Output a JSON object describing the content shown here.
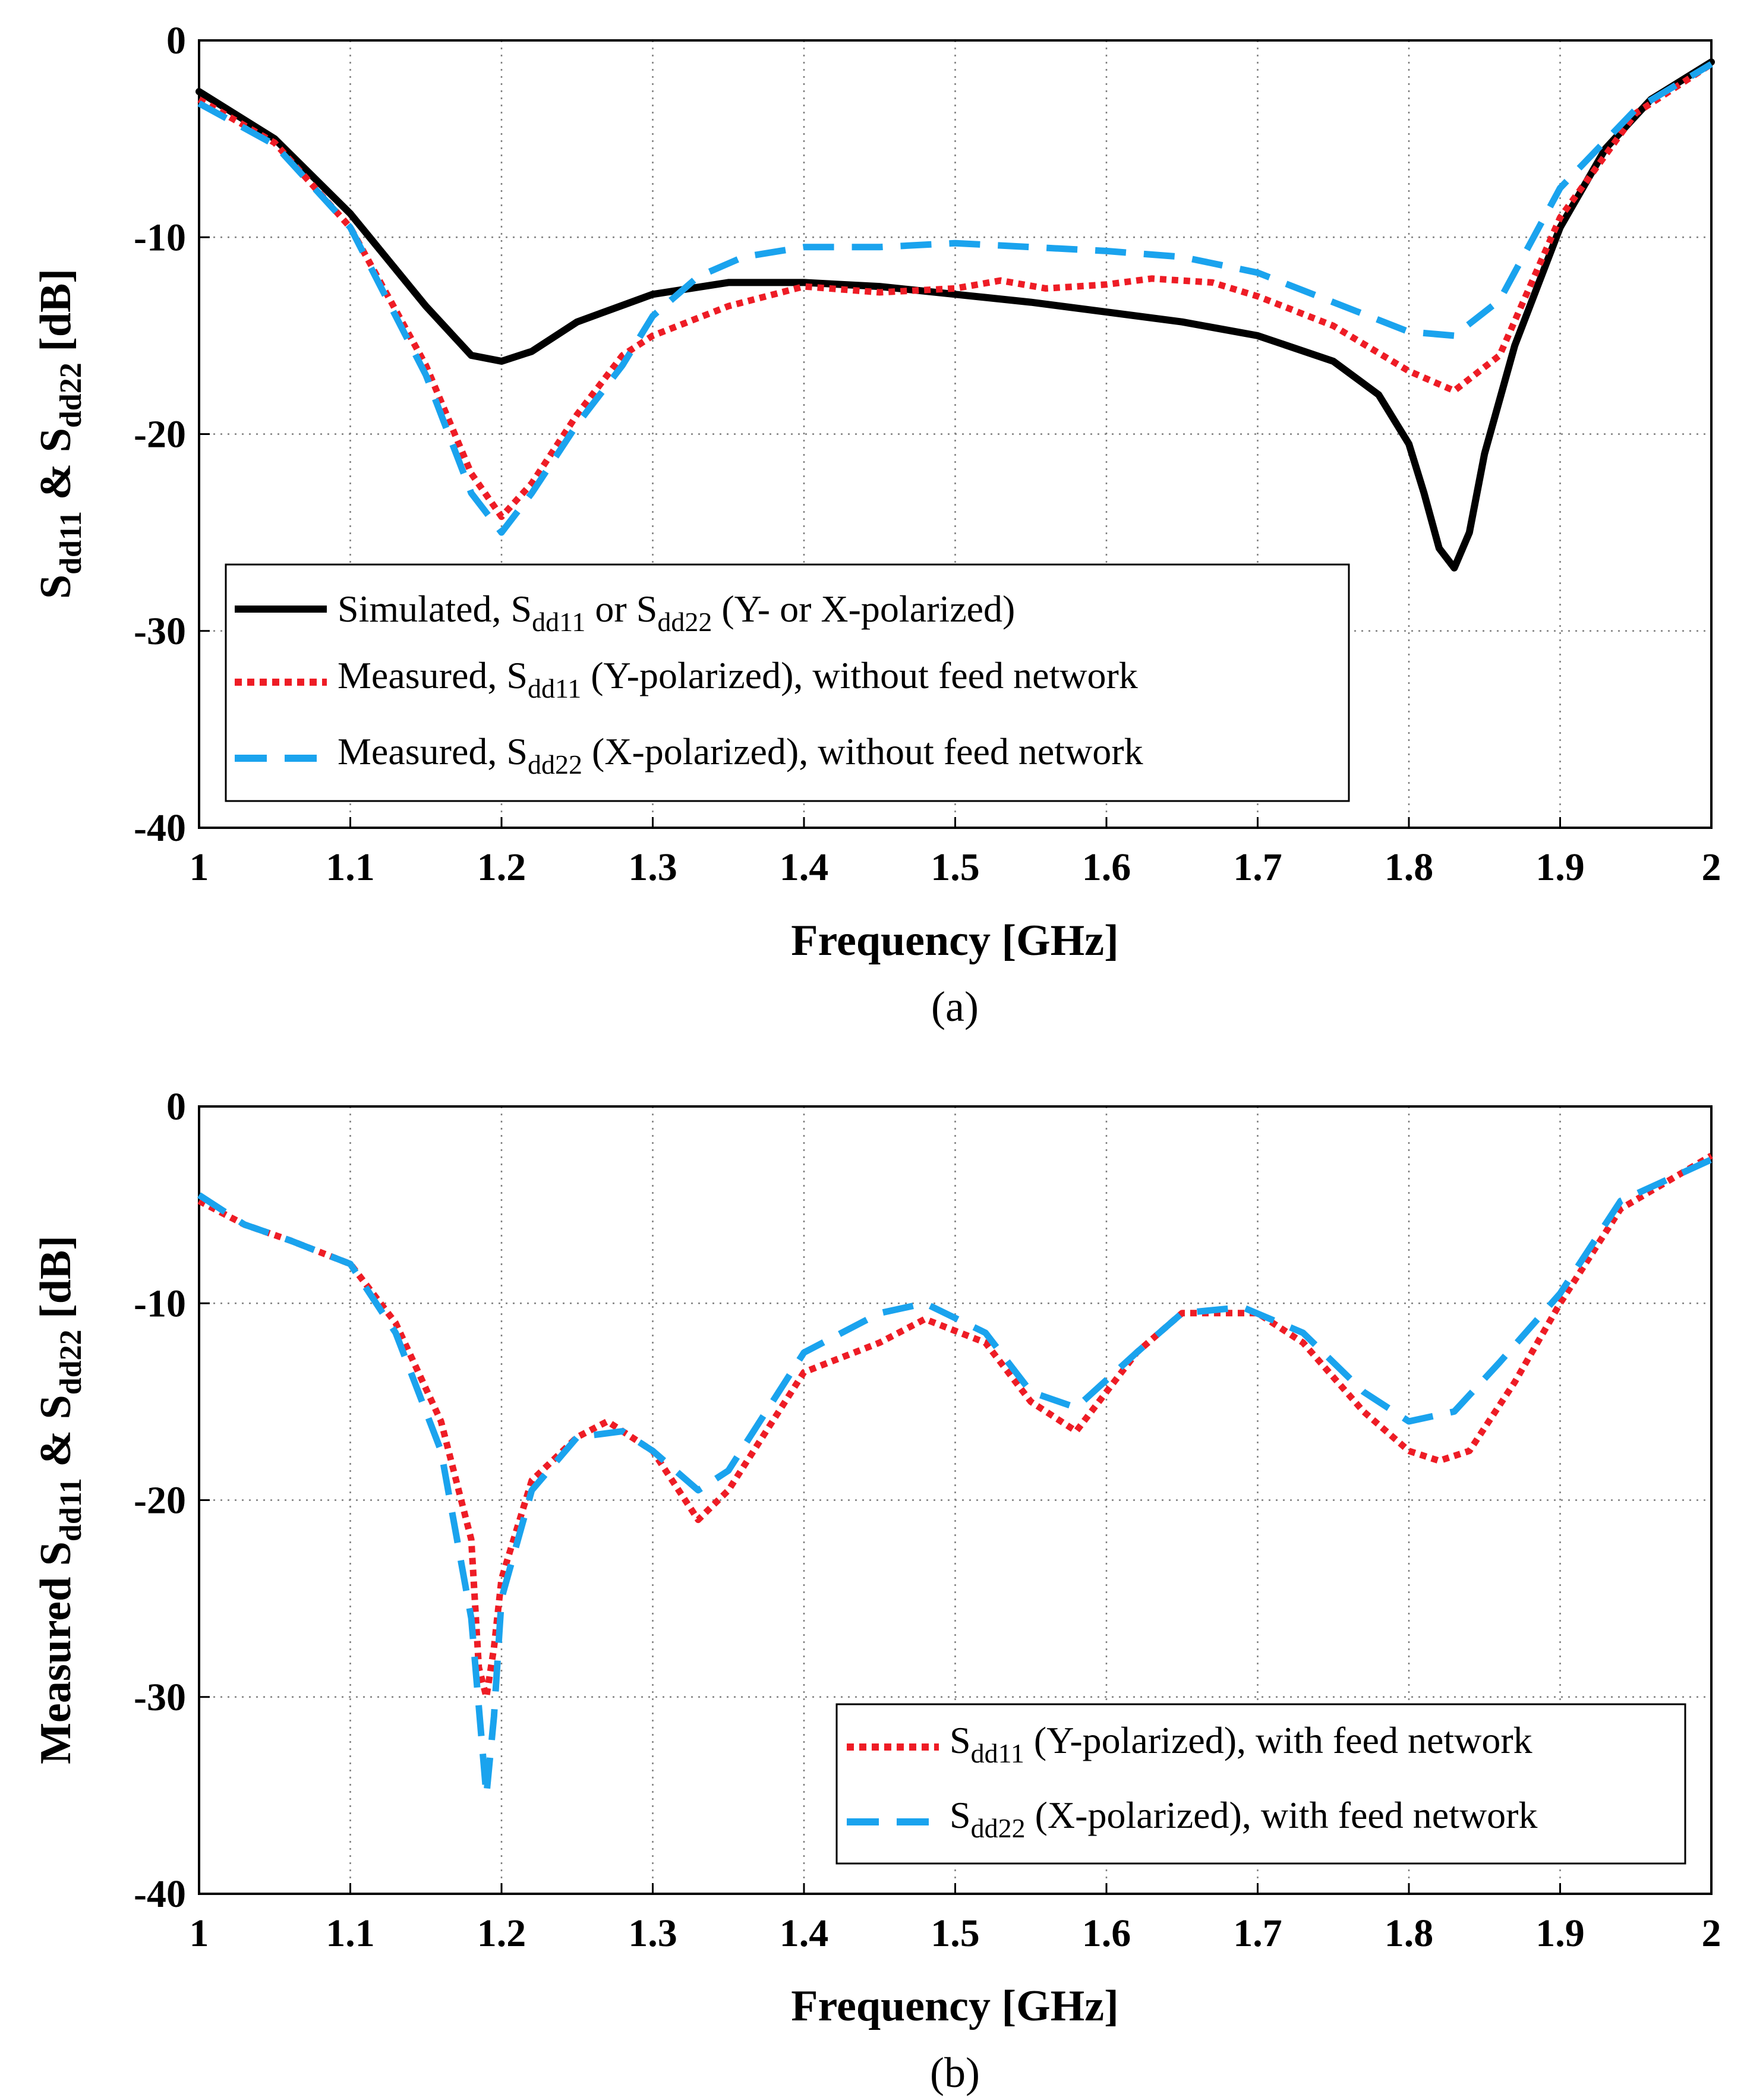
{
  "colors": {
    "simulated": "#000000",
    "measured_y": "#ee1c25",
    "measured_x": "#1aa3ee",
    "grid": "#7f7f7f"
  },
  "chart_data": [
    {
      "type": "line",
      "caption": "(a)",
      "xlabel": "Frequency [GHz]",
      "ylabel": {
        "part1": "S",
        "sub1": "dd11",
        "part2": " & S",
        "sub2": "dd22",
        "part3": " [dB]"
      },
      "xlim": [
        1,
        2
      ],
      "ylim": [
        -40,
        0
      ],
      "xticks": [
        "1",
        "1.1",
        "1.2",
        "1.3",
        "1.4",
        "1.5",
        "1.6",
        "1.7",
        "1.8",
        "1.9",
        "2"
      ],
      "yticks": [
        "0",
        "-10",
        "-20",
        "-30",
        "-40"
      ],
      "grid": true,
      "legend_position": "bottom-left",
      "series": [
        {
          "name": "Simulated, S dd11 or S dd22 (Y- or X-polarized)",
          "legend": {
            "pre": "Simulated,  S",
            "sub": "dd11",
            "mid": " or S",
            "sub2": "dd22",
            "post": " (Y- or X-polarized)"
          },
          "style": "solid",
          "x": [
            1.0,
            1.05,
            1.1,
            1.15,
            1.18,
            1.2,
            1.22,
            1.25,
            1.3,
            1.35,
            1.4,
            1.45,
            1.5,
            1.55,
            1.6,
            1.65,
            1.7,
            1.75,
            1.78,
            1.8,
            1.81,
            1.82,
            1.83,
            1.84,
            1.85,
            1.87,
            1.9,
            1.93,
            1.96,
            2.0
          ],
          "y": [
            -2.6,
            -5.0,
            -8.8,
            -13.5,
            -16.0,
            -16.3,
            -15.8,
            -14.3,
            -12.9,
            -12.3,
            -12.3,
            -12.5,
            -12.9,
            -13.3,
            -13.8,
            -14.3,
            -15.0,
            -16.3,
            -18.0,
            -20.5,
            -23.0,
            -25.8,
            -26.8,
            -25.0,
            -21.0,
            -15.5,
            -9.5,
            -5.5,
            -3.0,
            -1.1
          ]
        },
        {
          "name": "Measured, S dd11 (Y-polarized), without feed network",
          "legend": {
            "pre": "Measured,  S",
            "sub": "dd11",
            "mid": " (Y-polarized), without feed network",
            "sub2": "",
            "post": ""
          },
          "style": "dotted",
          "x": [
            1.0,
            1.05,
            1.1,
            1.15,
            1.18,
            1.2,
            1.22,
            1.25,
            1.28,
            1.3,
            1.35,
            1.4,
            1.45,
            1.5,
            1.53,
            1.56,
            1.6,
            1.63,
            1.67,
            1.7,
            1.75,
            1.8,
            1.83,
            1.86,
            1.9,
            1.95,
            2.0
          ],
          "y": [
            -3.0,
            -5.2,
            -9.5,
            -16.5,
            -22.0,
            -24.2,
            -22.5,
            -19.0,
            -16.0,
            -15.0,
            -13.5,
            -12.5,
            -12.8,
            -12.6,
            -12.2,
            -12.6,
            -12.4,
            -12.1,
            -12.3,
            -13.0,
            -14.5,
            -16.8,
            -17.8,
            -16.0,
            -9.0,
            -3.7,
            -1.2
          ]
        },
        {
          "name": "Measured, S dd22 (X-polarized), without feed network",
          "legend": {
            "pre": "Measured,  S",
            "sub": "dd22",
            "mid": " (X-polarized), without feed network",
            "sub2": "",
            "post": ""
          },
          "style": "dashed",
          "x": [
            1.0,
            1.05,
            1.1,
            1.15,
            1.18,
            1.2,
            1.22,
            1.25,
            1.28,
            1.3,
            1.33,
            1.36,
            1.4,
            1.45,
            1.5,
            1.55,
            1.6,
            1.65,
            1.7,
            1.75,
            1.8,
            1.83,
            1.86,
            1.9,
            1.95,
            2.0
          ],
          "y": [
            -3.2,
            -5.3,
            -9.5,
            -17.0,
            -23.0,
            -25.0,
            -23.0,
            -19.5,
            -16.5,
            -14.0,
            -12.0,
            -11.0,
            -10.5,
            -10.5,
            -10.3,
            -10.5,
            -10.7,
            -11.0,
            -11.8,
            -13.3,
            -14.8,
            -15.0,
            -13.2,
            -7.5,
            -3.5,
            -1.2
          ]
        }
      ]
    },
    {
      "type": "line",
      "caption": "(b)",
      "xlabel": "Frequency [GHz]",
      "ylabel": {
        "part1": "Measured S",
        "sub1": "dd11",
        "part2": " & S",
        "sub2": "dd22",
        "part3": " [dB]"
      },
      "xlim": [
        1,
        2
      ],
      "ylim": [
        -40,
        0
      ],
      "xticks": [
        "1",
        "1.1",
        "1.2",
        "1.3",
        "1.4",
        "1.5",
        "1.6",
        "1.7",
        "1.8",
        "1.9",
        "2"
      ],
      "yticks": [
        "0",
        "-10",
        "-20",
        "-30",
        "-40"
      ],
      "grid": true,
      "legend_position": "bottom-right",
      "series": [
        {
          "name": "S dd11 (Y-polarized), with feed network",
          "legend": {
            "pre": "S",
            "sub": "dd11",
            "mid": " (Y-polarized), with feed network",
            "sub2": "",
            "post": ""
          },
          "style": "dotted",
          "x": [
            1.0,
            1.03,
            1.06,
            1.1,
            1.13,
            1.16,
            1.18,
            1.185,
            1.19,
            1.195,
            1.2,
            1.22,
            1.25,
            1.27,
            1.3,
            1.33,
            1.35,
            1.4,
            1.45,
            1.48,
            1.52,
            1.55,
            1.58,
            1.62,
            1.65,
            1.7,
            1.73,
            1.77,
            1.8,
            1.82,
            1.84,
            1.87,
            1.9,
            1.94,
            2.0
          ],
          "y": [
            -4.8,
            -6.0,
            -6.8,
            -8.0,
            -11.0,
            -16.0,
            -22.0,
            -28.5,
            -30.0,
            -27.5,
            -24.0,
            -19.0,
            -16.8,
            -16.0,
            -17.5,
            -21.0,
            -19.5,
            -13.5,
            -12.0,
            -10.8,
            -12.0,
            -15.0,
            -16.5,
            -12.5,
            -10.5,
            -10.5,
            -12.0,
            -15.5,
            -17.5,
            -18.0,
            -17.5,
            -14.0,
            -10.0,
            -5.2,
            -2.5
          ]
        },
        {
          "name": "S dd22 (X-polarized), with feed network",
          "legend": {
            "pre": "S",
            "sub": "dd22",
            "mid": " (X-polarized), with feed network",
            "sub2": "",
            "post": ""
          },
          "style": "dashed",
          "x": [
            1.0,
            1.03,
            1.06,
            1.1,
            1.13,
            1.16,
            1.18,
            1.19,
            1.195,
            1.2,
            1.22,
            1.25,
            1.28,
            1.3,
            1.33,
            1.35,
            1.4,
            1.45,
            1.48,
            1.52,
            1.55,
            1.58,
            1.62,
            1.65,
            1.69,
            1.73,
            1.77,
            1.8,
            1.83,
            1.86,
            1.9,
            1.94,
            2.0
          ],
          "y": [
            -4.5,
            -6.0,
            -6.8,
            -8.0,
            -11.5,
            -17.5,
            -26.0,
            -35.0,
            -31.0,
            -25.0,
            -19.5,
            -16.8,
            -16.5,
            -17.5,
            -19.5,
            -18.5,
            -12.5,
            -10.5,
            -10.0,
            -11.5,
            -14.5,
            -15.3,
            -12.5,
            -10.5,
            -10.2,
            -11.5,
            -14.5,
            -16.0,
            -15.5,
            -13.0,
            -9.5,
            -4.8,
            -2.7
          ]
        }
      ]
    }
  ]
}
